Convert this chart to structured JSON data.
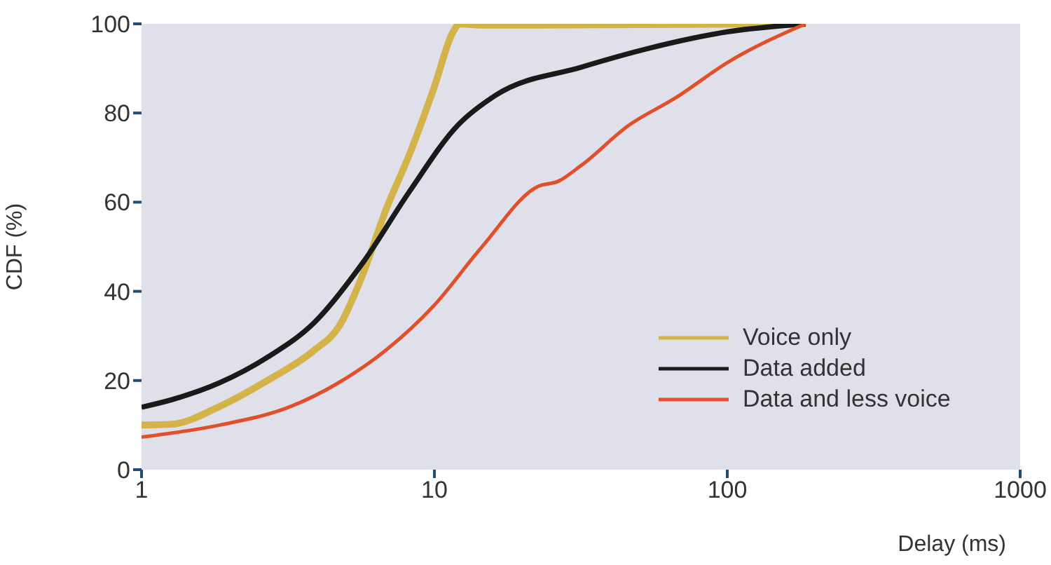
{
  "chart_data": {
    "type": "line",
    "xlabel": "Delay (ms)",
    "ylabel": "CDF (%)",
    "log": "x",
    "xlim": [
      1,
      1000
    ],
    "xticks": [
      1,
      10,
      100,
      1000
    ],
    "ylim": [
      0,
      100
    ],
    "yticks": [
      0,
      20,
      40,
      60,
      80,
      100
    ],
    "legend": "bottom right",
    "series": [
      {
        "name": "Voice only",
        "color": "#d4b44a",
        "x": [
          1,
          1.27,
          1.85,
          2.69,
          3.89,
          4.71,
          5.68,
          6.83,
          8.24,
          9.96,
          11.6,
          12.2,
          14.5,
          185
        ],
        "values": [
          10,
          10.2,
          14.2,
          20,
          26.8,
          32,
          43.6,
          58.3,
          70.9,
          85.6,
          98.3,
          100,
          99.7,
          100
        ]
      },
      {
        "name": "Data added",
        "color": "#1a1a1a",
        "x": [
          1,
          1.27,
          1.85,
          2.69,
          3.89,
          5.68,
          8.24,
          12,
          16.2,
          31.8,
          53.9,
          100,
          185
        ],
        "values": [
          14,
          15.7,
          19.5,
          25.2,
          33,
          46.3,
          62.5,
          77.2,
          84,
          90.3,
          94.5,
          98.2,
          100
        ]
      },
      {
        "name": "Data and less voice",
        "color": "#e0502a",
        "x": [
          1,
          1.85,
          3.24,
          4.71,
          6.83,
          9.96,
          14.5,
          22.7,
          26.3,
          31.8,
          46,
          67,
          100,
          185
        ],
        "values": [
          7.3,
          10,
          14.2,
          19.5,
          26.8,
          36.8,
          49.9,
          63.6,
          64.6,
          68.3,
          77.2,
          83.5,
          91.3,
          100
        ]
      }
    ]
  }
}
